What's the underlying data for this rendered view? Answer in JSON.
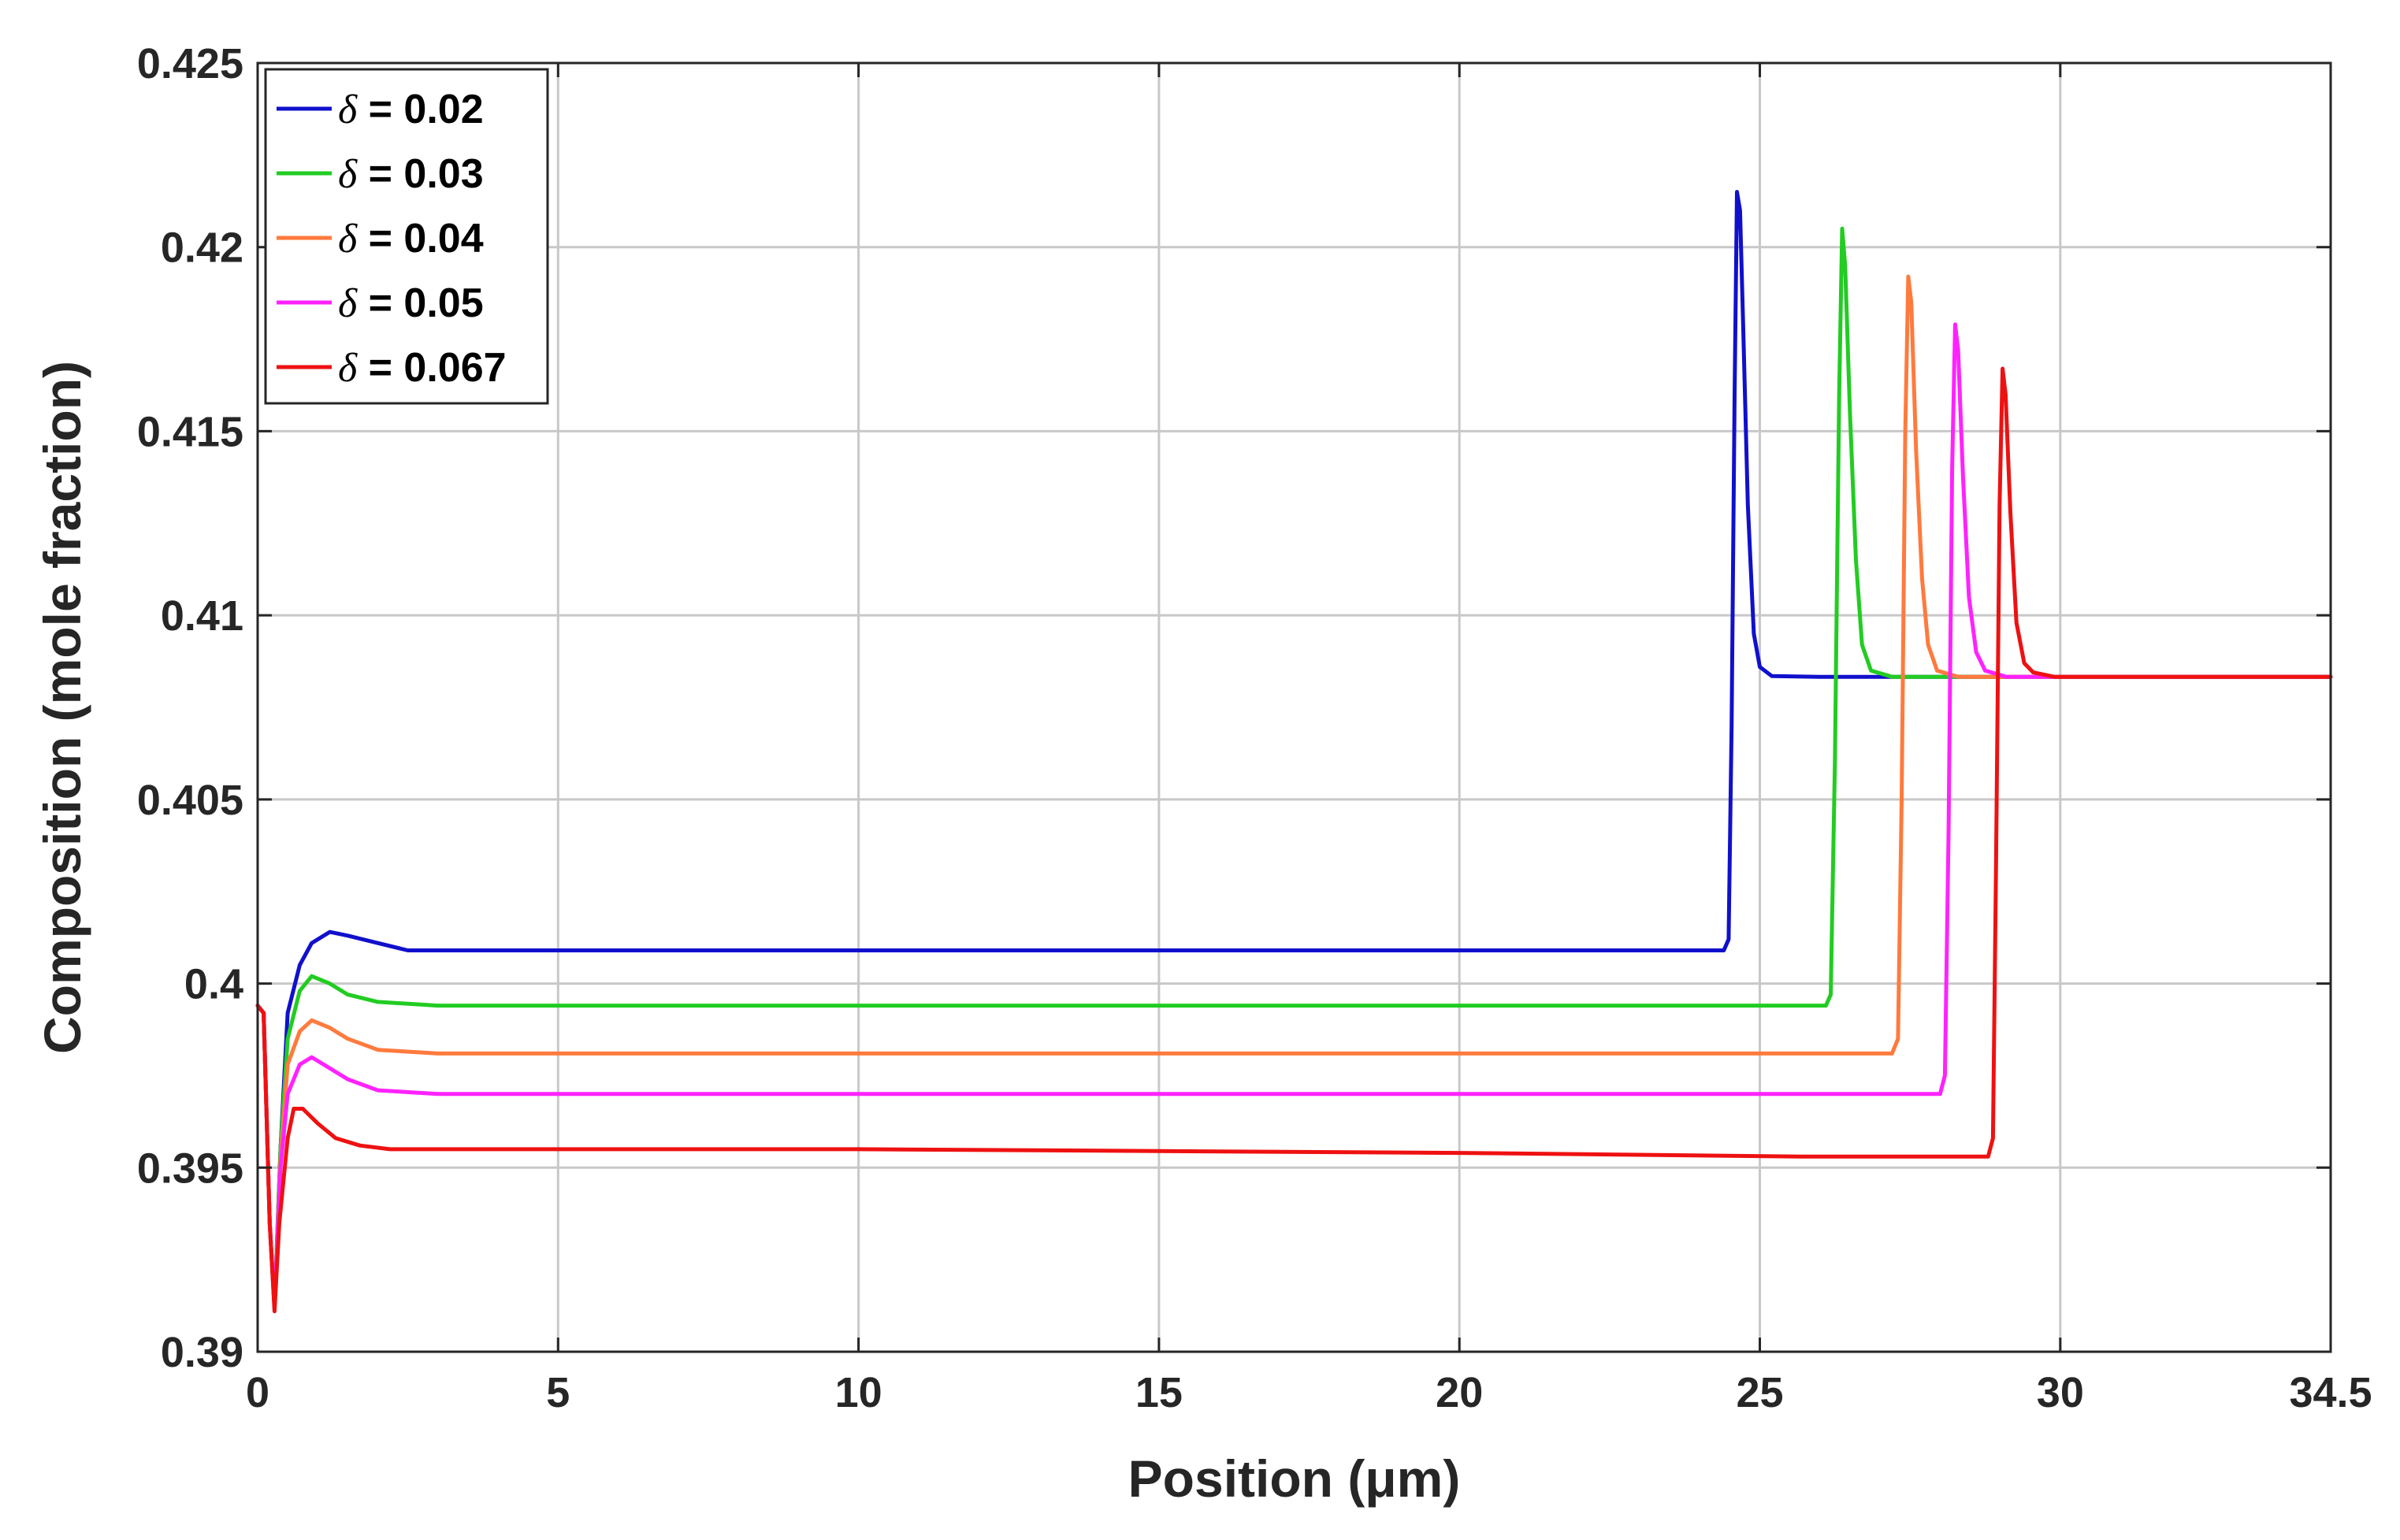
{
  "chart_data": {
    "type": "line",
    "title": "",
    "xlabel": "Position (μm)",
    "ylabel": "Composition (mole fraction)",
    "xlim": [
      0,
      34.5
    ],
    "ylim": [
      0.39,
      0.425
    ],
    "xticks": [
      0,
      5,
      10,
      15,
      20,
      25,
      30,
      34.5
    ],
    "xtick_labels": [
      "0",
      "5",
      "10",
      "15",
      "20",
      "25",
      "30",
      "34.5"
    ],
    "yticks": [
      0.39,
      0.395,
      0.4,
      0.405,
      0.41,
      0.415,
      0.42,
      0.425
    ],
    "ytick_labels": [
      "0.39",
      "0.395",
      "0.4",
      "0.405",
      "0.41",
      "0.415",
      "0.42",
      "0.425"
    ],
    "grid": true,
    "legend_position": "top-left",
    "series": [
      {
        "name": "δ = 0.02",
        "legend_symbol": "δ",
        "legend_text": " = 0.02",
        "color": "#1010cc",
        "points": [
          [
            0,
            0.3994
          ],
          [
            0.1,
            0.3992
          ],
          [
            0.2,
            0.3935
          ],
          [
            0.28,
            0.3912
          ],
          [
            0.38,
            0.3955
          ],
          [
            0.5,
            0.3992
          ],
          [
            0.7,
            0.4005
          ],
          [
            0.9,
            0.4011
          ],
          [
            1.2,
            0.4014
          ],
          [
            1.5,
            0.4013
          ],
          [
            2,
            0.4011
          ],
          [
            2.5,
            0.4009
          ],
          [
            3,
            0.4009
          ],
          [
            10,
            0.4009
          ],
          [
            20,
            0.4009
          ],
          [
            24.4,
            0.4009
          ],
          [
            24.48,
            0.4012
          ],
          [
            24.53,
            0.407
          ],
          [
            24.58,
            0.416
          ],
          [
            24.62,
            0.4215
          ],
          [
            24.67,
            0.421
          ],
          [
            24.72,
            0.418
          ],
          [
            24.8,
            0.413
          ],
          [
            24.9,
            0.4095
          ],
          [
            25,
            0.4086
          ],
          [
            25.2,
            0.40835
          ],
          [
            26,
            0.40833
          ],
          [
            34.5,
            0.40833
          ]
        ]
      },
      {
        "name": "δ = 0.03",
        "legend_symbol": "δ",
        "legend_text": " = 0.03",
        "color": "#22cc22",
        "points": [
          [
            0,
            0.3994
          ],
          [
            0.1,
            0.3992
          ],
          [
            0.2,
            0.3935
          ],
          [
            0.28,
            0.3912
          ],
          [
            0.38,
            0.3955
          ],
          [
            0.5,
            0.3985
          ],
          [
            0.7,
            0.3998
          ],
          [
            0.9,
            0.4002
          ],
          [
            1.2,
            0.4
          ],
          [
            1.5,
            0.3997
          ],
          [
            2,
            0.3995
          ],
          [
            3,
            0.3994
          ],
          [
            10,
            0.3994
          ],
          [
            20,
            0.3994
          ],
          [
            26.1,
            0.3994
          ],
          [
            26.18,
            0.3997
          ],
          [
            26.25,
            0.406
          ],
          [
            26.32,
            0.416
          ],
          [
            26.37,
            0.4205
          ],
          [
            26.42,
            0.4195
          ],
          [
            26.5,
            0.4155
          ],
          [
            26.6,
            0.4115
          ],
          [
            26.7,
            0.4092
          ],
          [
            26.85,
            0.4085
          ],
          [
            27.2,
            0.40833
          ],
          [
            34.5,
            0.40833
          ]
        ]
      },
      {
        "name": "δ = 0.04",
        "legend_symbol": "δ",
        "legend_text": " = 0.04",
        "color": "#ff7a3d",
        "points": [
          [
            0,
            0.3994
          ],
          [
            0.1,
            0.3992
          ],
          [
            0.2,
            0.3935
          ],
          [
            0.28,
            0.3912
          ],
          [
            0.38,
            0.3952
          ],
          [
            0.5,
            0.3978
          ],
          [
            0.7,
            0.3987
          ],
          [
            0.9,
            0.399
          ],
          [
            1.2,
            0.3988
          ],
          [
            1.5,
            0.3985
          ],
          [
            2,
            0.3982
          ],
          [
            3,
            0.3981
          ],
          [
            10,
            0.3981
          ],
          [
            20,
            0.3981
          ],
          [
            27.2,
            0.3981
          ],
          [
            27.3,
            0.3985
          ],
          [
            27.36,
            0.405
          ],
          [
            27.42,
            0.415
          ],
          [
            27.47,
            0.4192
          ],
          [
            27.52,
            0.4185
          ],
          [
            27.6,
            0.4145
          ],
          [
            27.7,
            0.411
          ],
          [
            27.8,
            0.4092
          ],
          [
            27.95,
            0.4085
          ],
          [
            28.3,
            0.40833
          ],
          [
            34.5,
            0.40833
          ]
        ]
      },
      {
        "name": "δ = 0.05",
        "legend_symbol": "δ",
        "legend_text": " = 0.05",
        "color": "#ff22ff",
        "points": [
          [
            0,
            0.3994
          ],
          [
            0.1,
            0.3992
          ],
          [
            0.2,
            0.3935
          ],
          [
            0.28,
            0.3912
          ],
          [
            0.38,
            0.395
          ],
          [
            0.5,
            0.397
          ],
          [
            0.7,
            0.3978
          ],
          [
            0.9,
            0.398
          ],
          [
            1.2,
            0.3977
          ],
          [
            1.5,
            0.3974
          ],
          [
            2,
            0.3971
          ],
          [
            3,
            0.397
          ],
          [
            10,
            0.397
          ],
          [
            20,
            0.397
          ],
          [
            28,
            0.397
          ],
          [
            28.08,
            0.3975
          ],
          [
            28.14,
            0.404
          ],
          [
            28.2,
            0.414
          ],
          [
            28.25,
            0.4179
          ],
          [
            28.3,
            0.4172
          ],
          [
            28.38,
            0.4138
          ],
          [
            28.48,
            0.4105
          ],
          [
            28.6,
            0.409
          ],
          [
            28.75,
            0.4085
          ],
          [
            29.1,
            0.40833
          ],
          [
            34.5,
            0.40833
          ]
        ]
      },
      {
        "name": "δ = 0.067",
        "legend_symbol": "δ",
        "legend_text": " = 0.067",
        "color": "#ee1111",
        "points": [
          [
            0,
            0.3994
          ],
          [
            0.1,
            0.3992
          ],
          [
            0.2,
            0.3935
          ],
          [
            0.28,
            0.3911
          ],
          [
            0.36,
            0.3935
          ],
          [
            0.5,
            0.3958
          ],
          [
            0.6,
            0.3966
          ],
          [
            0.75,
            0.3966
          ],
          [
            1,
            0.3962
          ],
          [
            1.3,
            0.3958
          ],
          [
            1.7,
            0.3956
          ],
          [
            2.2,
            0.3955
          ],
          [
            3,
            0.3955
          ],
          [
            10,
            0.3955
          ],
          [
            20,
            0.3954
          ],
          [
            25.7,
            0.3953
          ],
          [
            28.8,
            0.3953
          ],
          [
            28.88,
            0.3958
          ],
          [
            28.93,
            0.403
          ],
          [
            28.99,
            0.413
          ],
          [
            29.04,
            0.4167
          ],
          [
            29.09,
            0.416
          ],
          [
            29.17,
            0.4128
          ],
          [
            29.27,
            0.4098
          ],
          [
            29.4,
            0.4087
          ],
          [
            29.55,
            0.40845
          ],
          [
            29.9,
            0.40833
          ],
          [
            34.5,
            0.40833
          ]
        ]
      }
    ]
  }
}
